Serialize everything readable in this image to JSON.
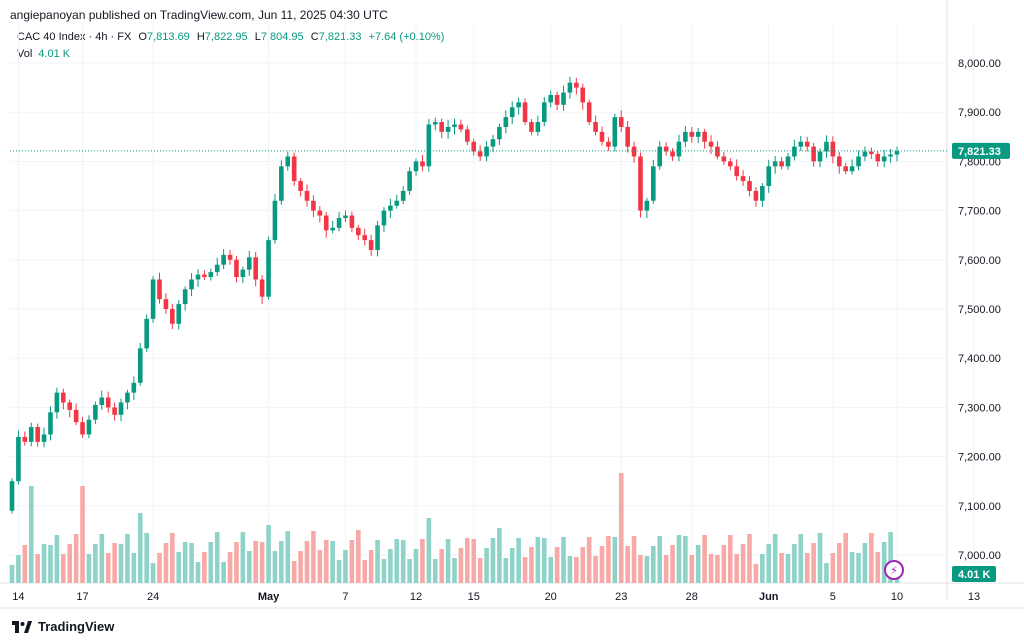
{
  "header": {
    "published": "angiepanoyan published on TradingView.com, Jun 11, 2025 04:30 UTC"
  },
  "legend": {
    "symbol": "CAC 40 Index · 4h · FX",
    "o_label": "O",
    "o_value": "7,813.69",
    "h_label": "H",
    "h_value": "7,822.95",
    "l_label": "L",
    "l_value": "7,804.95",
    "c_label": "C",
    "c_value": "7,821.33",
    "change": "+7.64 (+0.10%)",
    "vol_label": "Vol",
    "vol_value": "4.01 K"
  },
  "footer": {
    "brand": "TradingView"
  },
  "icons": {
    "logo": "tradingview-logo-icon",
    "bolt": "lightning-icon"
  },
  "colors": {
    "up": "#089981",
    "down": "#f23645",
    "up_vol": "#8fd2c8",
    "down_vol": "#f7a9a7",
    "price_line": "#089981"
  },
  "chart_data": {
    "type": "candlestick",
    "ylim": [
      6950,
      8050
    ],
    "y_ticks": [
      "7,000.00",
      "7,100.00",
      "7,200.00",
      "7,300.00",
      "7,400.00",
      "7,500.00",
      "7,600.00",
      "7,700.00",
      "7,800.00",
      "7,900.00",
      "8,000.00"
    ],
    "y_tick_values": [
      7000,
      7100,
      7200,
      7300,
      7400,
      7500,
      7600,
      7700,
      7800,
      7900,
      8000
    ],
    "x_ticks": [
      "14",
      "17",
      "24",
      "May",
      "7",
      "12",
      "15",
      "20",
      "23",
      "28",
      "Jun",
      "5",
      "10",
      "13"
    ],
    "x_tick_index": [
      1,
      11,
      22,
      40,
      52,
      63,
      72,
      84,
      95,
      106,
      118,
      128,
      138,
      150
    ],
    "last_price": 7821.33,
    "last_price_label": "7,821.33",
    "last_vol_label": "4.01 K",
    "closes": [
      7150,
      7240,
      7230,
      7260,
      7230,
      7245,
      7290,
      7330,
      7310,
      7295,
      7270,
      7245,
      7275,
      7305,
      7320,
      7300,
      7285,
      7310,
      7330,
      7350,
      7420,
      7480,
      7560,
      7520,
      7500,
      7470,
      7510,
      7540,
      7560,
      7570,
      7565,
      7575,
      7590,
      7610,
      7600,
      7565,
      7580,
      7605,
      7560,
      7525,
      7640,
      7720,
      7790,
      7810,
      7760,
      7740,
      7720,
      7700,
      7690,
      7660,
      7665,
      7685,
      7690,
      7665,
      7650,
      7640,
      7620,
      7670,
      7700,
      7710,
      7720,
      7740,
      7780,
      7800,
      7790,
      7875,
      7880,
      7860,
      7870,
      7875,
      7865,
      7840,
      7820,
      7810,
      7830,
      7845,
      7870,
      7890,
      7910,
      7920,
      7880,
      7860,
      7880,
      7920,
      7935,
      7915,
      7940,
      7960,
      7950,
      7920,
      7880,
      7860,
      7840,
      7830,
      7890,
      7870,
      7830,
      7810,
      7700,
      7720,
      7790,
      7830,
      7820,
      7810,
      7840,
      7860,
      7850,
      7860,
      7840,
      7830,
      7810,
      7800,
      7790,
      7770,
      7760,
      7740,
      7720,
      7750,
      7790,
      7800,
      7790,
      7810,
      7830,
      7840,
      7830,
      7800,
      7820,
      7840,
      7810,
      7790,
      7780,
      7790,
      7810,
      7820,
      7815,
      7800,
      7810,
      7814,
      7821
    ]
  }
}
